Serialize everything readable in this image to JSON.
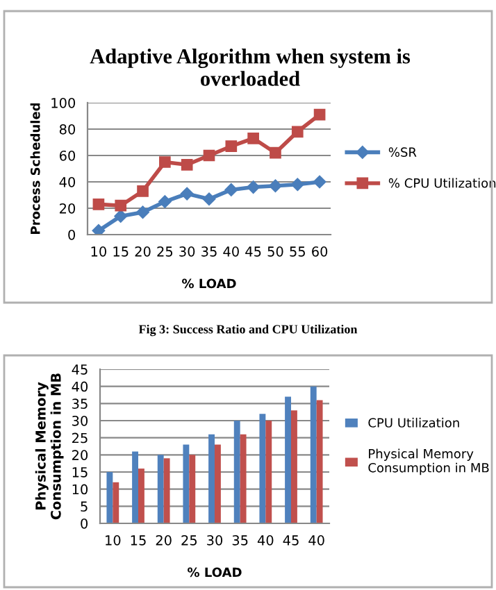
{
  "chart_data": [
    {
      "type": "line",
      "title": "Adaptive Algorithm when system is\noverloaded",
      "xlabel": "% LOAD",
      "ylabel": "Process Scheduled",
      "categories": [
        "10",
        "15",
        "20",
        "25",
        "30",
        "35",
        "40",
        "45",
        "50",
        "55",
        "60"
      ],
      "series": [
        {
          "name": "%SR",
          "color": "#4a7ebb",
          "marker": "diamond",
          "values": [
            3,
            14,
            17,
            25,
            31,
            27,
            34,
            36,
            37,
            38,
            40
          ]
        },
        {
          "name": "% CPU Utilization",
          "color": "#be4b48",
          "marker": "square",
          "values": [
            23,
            22,
            33,
            55,
            53,
            60,
            67,
            73,
            62,
            78,
            91
          ]
        }
      ],
      "ylim": [
        0,
        100
      ],
      "yticks": [
        0,
        20,
        40,
        60,
        80,
        100
      ],
      "grid": "y",
      "legend": "right",
      "annotations": [
        "Fig 3: Success Ratio and CPU Utilization"
      ]
    },
    {
      "type": "bar",
      "xlabel": "% LOAD",
      "ylabel": "Physical Memory\nConsumption in MB",
      "categories": [
        "10",
        "15",
        "20",
        "25",
        "30",
        "35",
        "40",
        "45",
        "40"
      ],
      "series": [
        {
          "name": "CPU Utilization",
          "color": "#4f81bd",
          "values": [
            15,
            21,
            20,
            23,
            26,
            30,
            32,
            37,
            40
          ]
        },
        {
          "name": "Physical Memory\nConsumption in MB",
          "color": "#c0504d",
          "values": [
            12,
            16,
            19,
            20,
            23,
            26,
            30,
            33,
            36
          ]
        }
      ],
      "ylim": [
        0,
        45
      ],
      "yticks": [
        0,
        5,
        10,
        15,
        20,
        25,
        30,
        35,
        40,
        45
      ],
      "grid": "y",
      "legend": "right"
    }
  ]
}
